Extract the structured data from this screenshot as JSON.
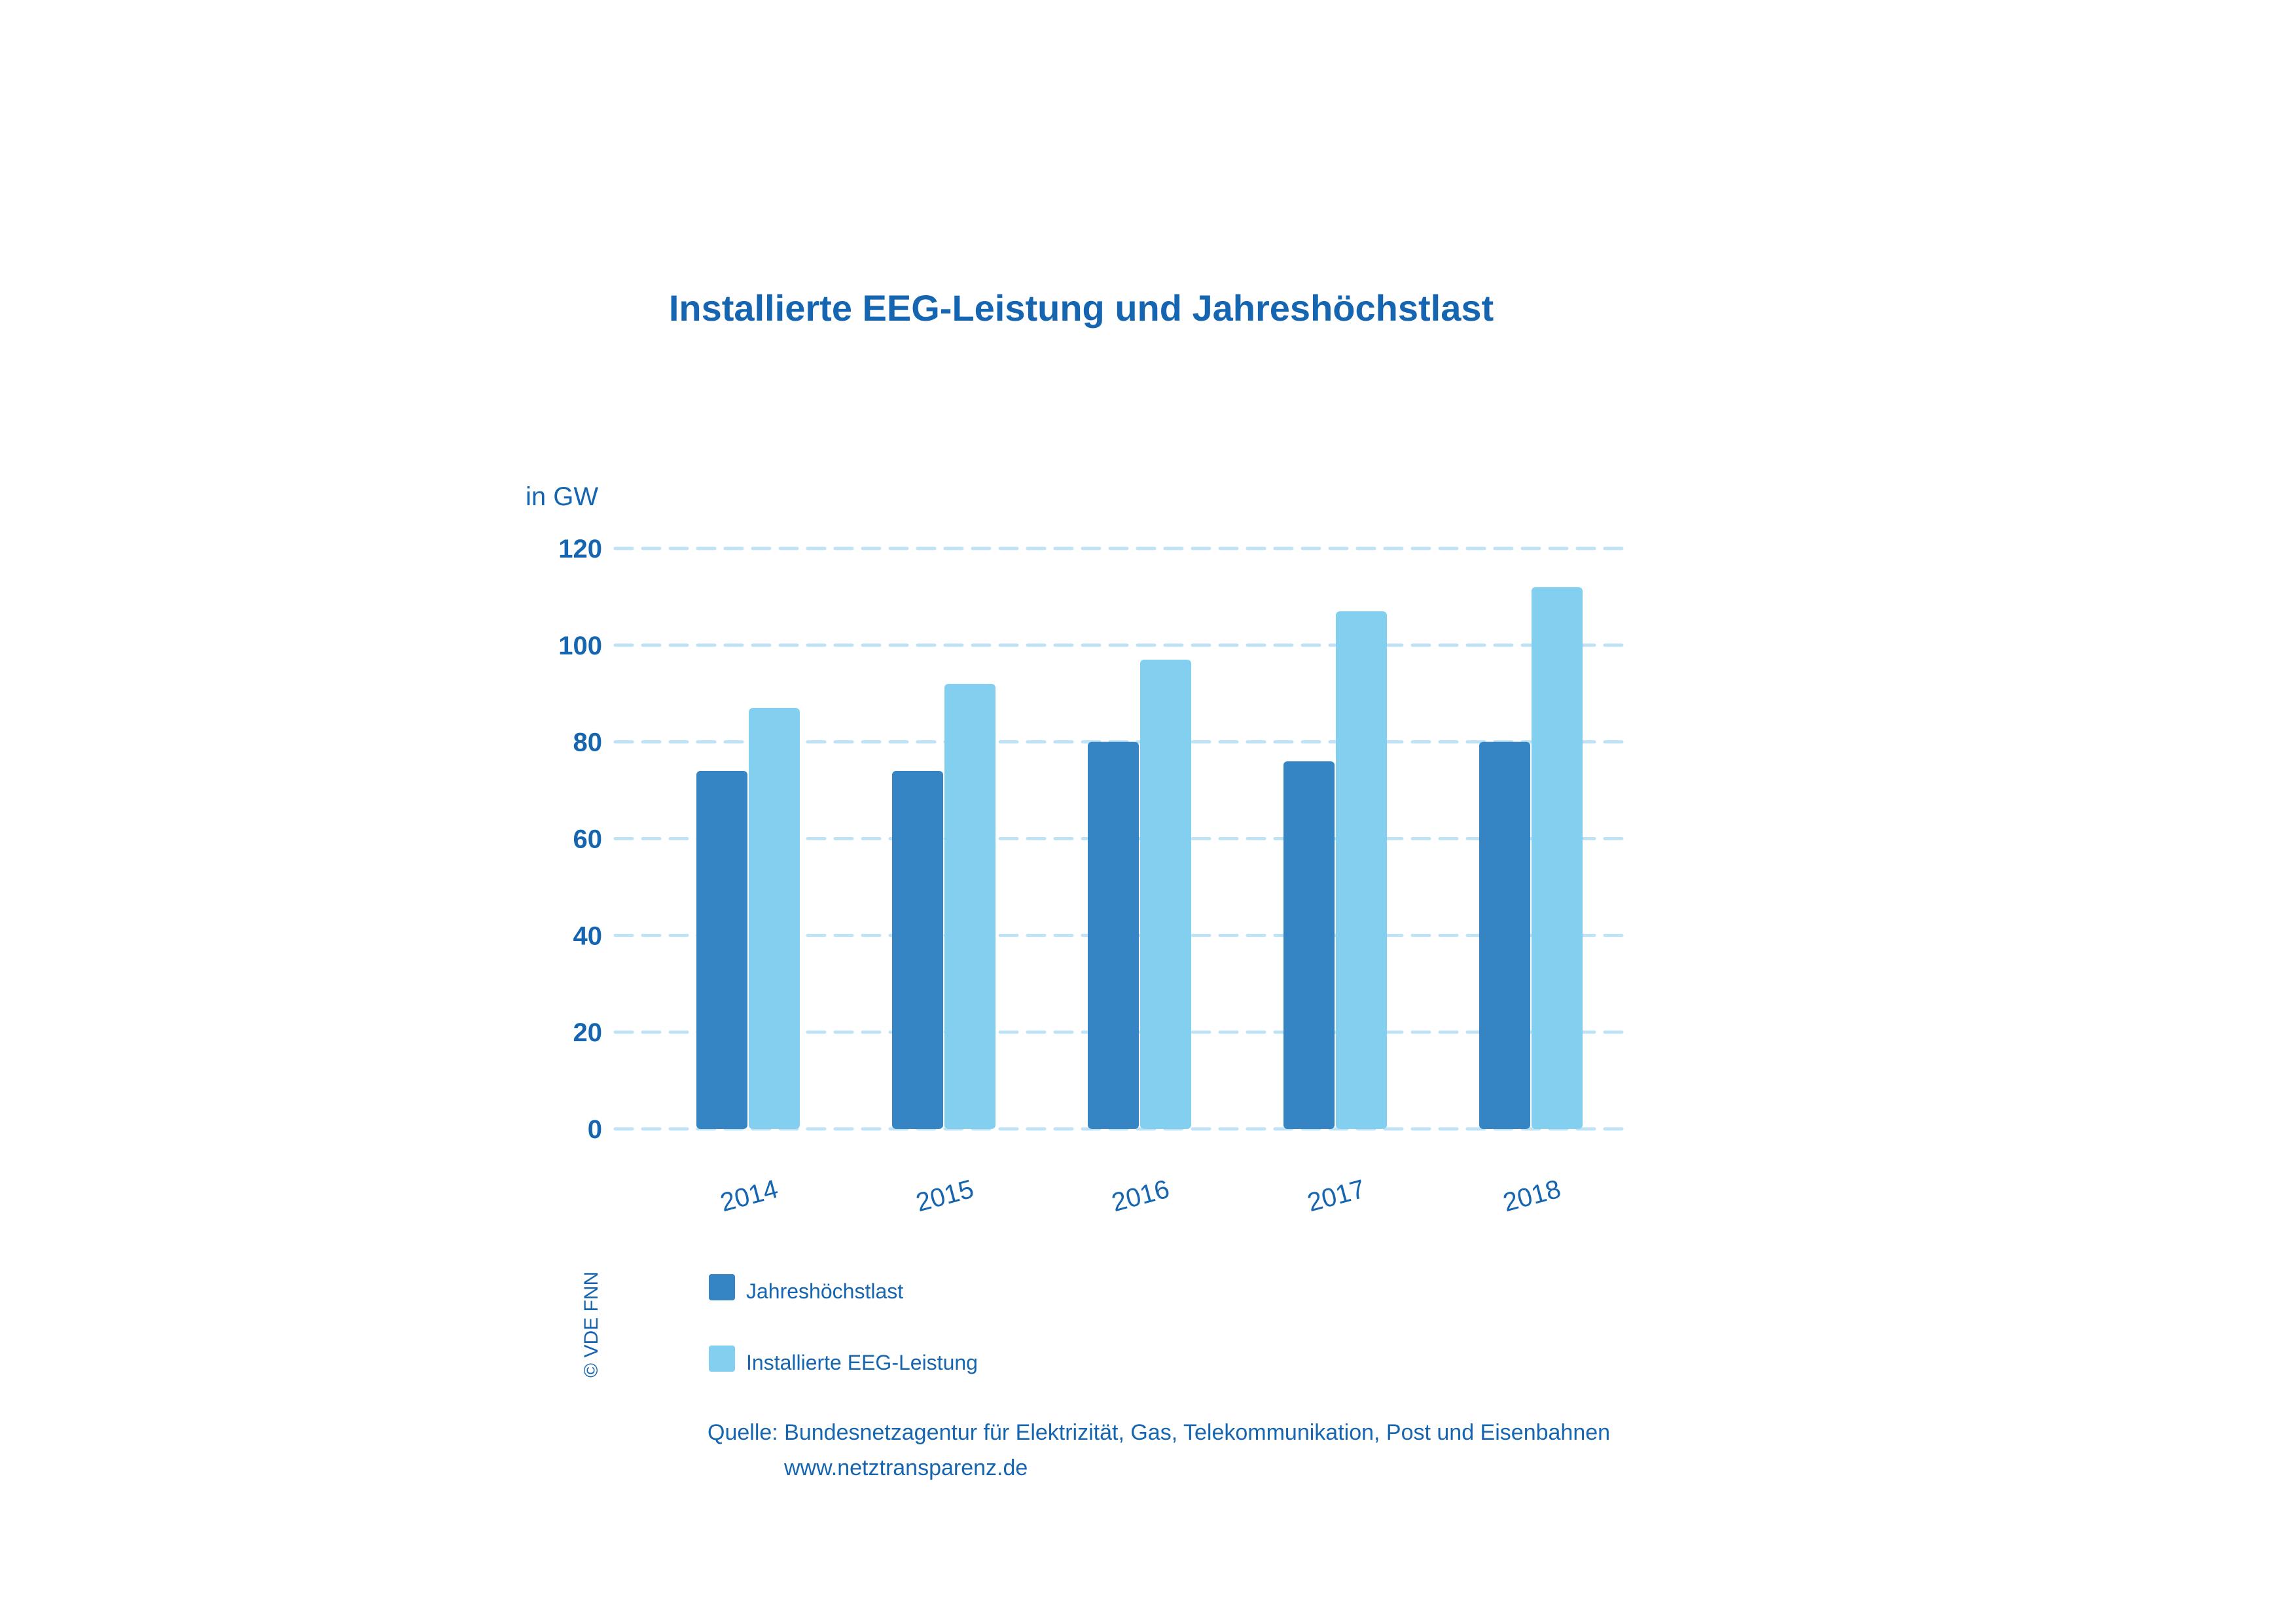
{
  "chart_data": {
    "type": "bar",
    "title": "Installierte EEG-Leistung und Jahreshöchstlast",
    "ylabel": "in GW",
    "ylim": [
      0,
      120
    ],
    "yticks": [
      0,
      20,
      40,
      60,
      80,
      100,
      120
    ],
    "grid": true,
    "categories": [
      "2014",
      "2015",
      "2016",
      "2017",
      "2018"
    ],
    "series": [
      {
        "name": "Jahreshöchstlast",
        "values": [
          74,
          74,
          80,
          76,
          80
        ],
        "color": "#3585c5"
      },
      {
        "name": "Installierte EEG-Leistung",
        "values": [
          87,
          92,
          97,
          107,
          112
        ],
        "color": "#82cfef"
      }
    ],
    "legend_position": "bottom-left"
  },
  "source": {
    "line1": "Quelle: Bundesnetzagentur für Elektrizität, Gas, Telekommunikation, Post und Eisenbahnen",
    "line2": "www.netztransparenz.de"
  },
  "copyright": "© VDE FNN"
}
